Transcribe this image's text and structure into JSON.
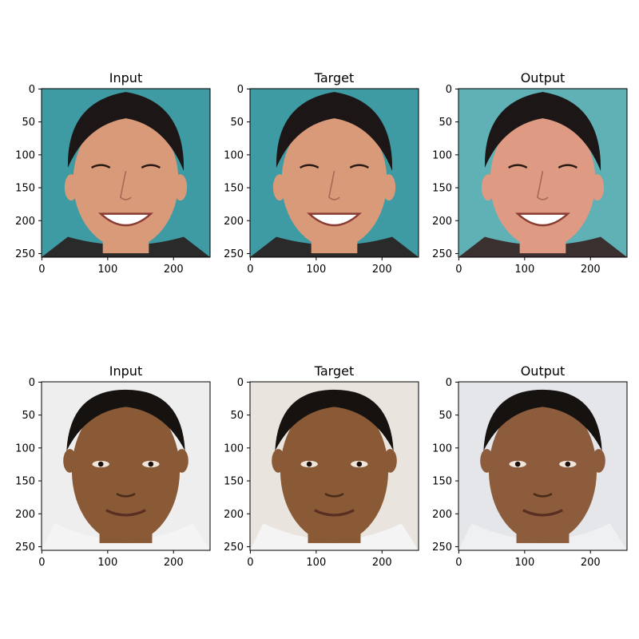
{
  "figure": {
    "panels": [
      {
        "id": "r1-input",
        "title": "Input",
        "row": 0,
        "col": 0,
        "subject": "smiling-man-dark-hair",
        "skin": "#d99a7a",
        "hair": "#1c1716",
        "bg": "#3e9aa3",
        "shirt": "#2a2a2a"
      },
      {
        "id": "r1-target",
        "title": "Target",
        "row": 0,
        "col": 1,
        "subject": "smiling-man-dark-hair",
        "skin": "#d99a7a",
        "hair": "#1c1716",
        "bg": "#3e9aa3",
        "shirt": "#2a2a2a"
      },
      {
        "id": "r1-output",
        "title": "Output",
        "row": 0,
        "col": 2,
        "subject": "smiling-man-dark-hair",
        "skin": "#de9a82",
        "hair": "#1c1716",
        "bg": "#5fb1b6",
        "shirt": "#3a3030"
      },
      {
        "id": "r2-input",
        "title": "Input",
        "row": 1,
        "col": 0,
        "subject": "smiling-man-short-hair",
        "skin": "#8a5a36",
        "hair": "#161210",
        "bg": "#eeeeee",
        "shirt": "#f4f4f4"
      },
      {
        "id": "r2-target",
        "title": "Target",
        "row": 1,
        "col": 1,
        "subject": "smiling-man-short-hair",
        "skin": "#8a5a36",
        "hair": "#161210",
        "bg": "#e9e4de",
        "shirt": "#f4f4f4"
      },
      {
        "id": "r2-output",
        "title": "Output",
        "row": 1,
        "col": 2,
        "subject": "smiling-man-short-hair",
        "skin": "#8c5c3c",
        "hair": "#161210",
        "bg": "#e4e6ea",
        "shirt": "#eef0f2"
      }
    ],
    "axes": {
      "x_ticks": [
        "0",
        "100",
        "200"
      ],
      "x_tick_values": [
        0,
        100,
        200
      ],
      "y_ticks": [
        "0",
        "50",
        "100",
        "150",
        "200",
        "250"
      ],
      "y_tick_values": [
        0,
        50,
        100,
        150,
        200,
        250
      ],
      "x_range": [
        -0.5,
        255.5
      ],
      "y_range": [
        -0.5,
        255.5
      ],
      "y_inverted": true
    },
    "colors": {
      "axis_line": "#000000",
      "text": "#000000",
      "background": "#ffffff"
    }
  }
}
